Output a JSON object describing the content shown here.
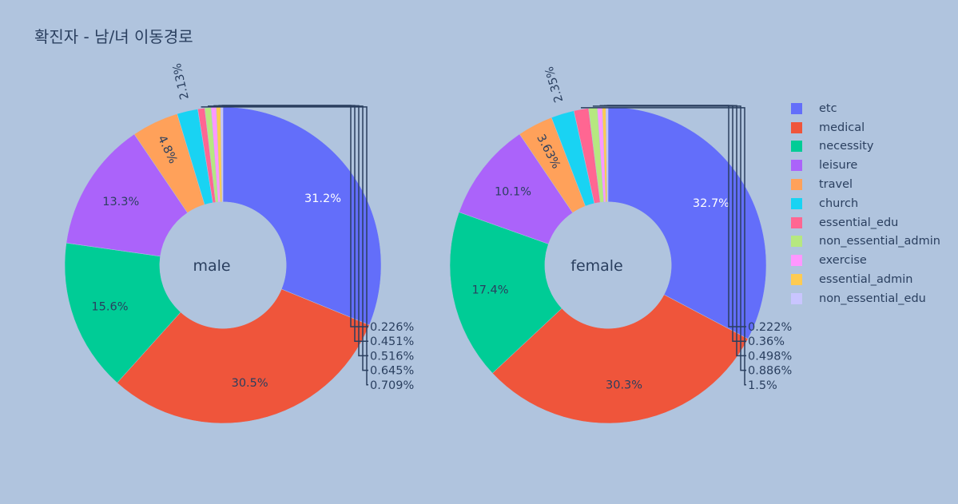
{
  "chart_data": {
    "type": "pie",
    "title": "확진자 - 남/녀 이동경로",
    "categories": [
      "etc",
      "medical",
      "necessity",
      "leisure",
      "travel",
      "church",
      "essential_edu",
      "non_essential_admin",
      "exercise",
      "essential_admin",
      "non_essential_edu"
    ],
    "colors": [
      "#636efa",
      "#ef553b",
      "#00cc96",
      "#ab63fa",
      "#ffa15a",
      "#19d3f3",
      "#ff6692",
      "#b6e880",
      "#ff97ff",
      "#fecb52",
      "#c9c5ff"
    ],
    "legend_position": "right",
    "hole": 0.4,
    "pies": [
      {
        "center_label": "male",
        "labels": [
          "31.2%",
          "30.5%",
          "15.6%",
          "13.3%",
          "4.8%",
          "2.13%",
          "0.709%",
          "0.645%",
          "0.516%",
          "0.451%",
          "0.226%"
        ],
        "values": [
          31.2,
          30.5,
          15.6,
          13.3,
          4.8,
          2.13,
          0.709,
          0.645,
          0.516,
          0.451,
          0.226
        ]
      },
      {
        "center_label": "female",
        "labels": [
          "32.7%",
          "30.3%",
          "17.4%",
          "10.1%",
          "3.63%",
          "2.35%",
          "1.5%",
          "0.886%",
          "0.498%",
          "0.36%",
          "0.222%"
        ],
        "values": [
          32.7,
          30.3,
          17.4,
          10.1,
          3.63,
          2.35,
          1.5,
          0.886,
          0.498,
          0.36,
          0.222
        ]
      }
    ]
  }
}
